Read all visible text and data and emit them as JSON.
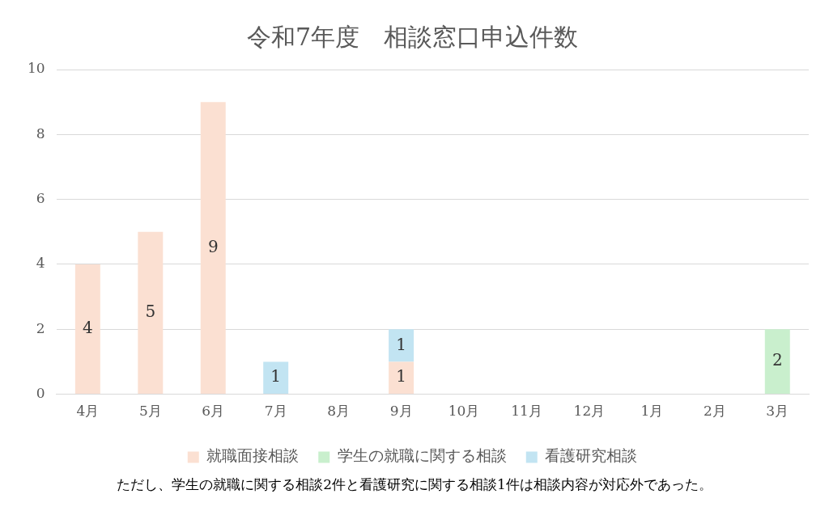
{
  "chart_data": {
    "type": "bar",
    "title": "令和7年度　相談窓口申込件数",
    "categories": [
      "4月",
      "5月",
      "6月",
      "7月",
      "8月",
      "9月",
      "10月",
      "11月",
      "12月",
      "1月",
      "2月",
      "3月"
    ],
    "series": [
      {
        "name": "就職面接相談",
        "color": "#fbe0d2",
        "values": [
          4,
          5,
          9,
          null,
          null,
          1,
          null,
          null,
          null,
          null,
          null,
          null
        ]
      },
      {
        "name": "学生の就職に関する相談",
        "color": "#c9efcd",
        "values": [
          null,
          null,
          null,
          null,
          null,
          null,
          null,
          null,
          null,
          null,
          null,
          2
        ]
      },
      {
        "name": "看護研究相談",
        "color": "#c2e4f2",
        "values": [
          null,
          null,
          null,
          1,
          null,
          1,
          null,
          null,
          null,
          null,
          null,
          null
        ]
      }
    ],
    "stacked": true,
    "ylim": [
      0,
      10
    ],
    "yticks": [
      0,
      2,
      4,
      6,
      8,
      10
    ],
    "grid": "y",
    "legend": "bottom",
    "data_labels": true,
    "annotations": [
      "ただし、学生の就職に関する相談2件と看護研究に関する相談1件は相談内容が対応外であった。"
    ]
  }
}
